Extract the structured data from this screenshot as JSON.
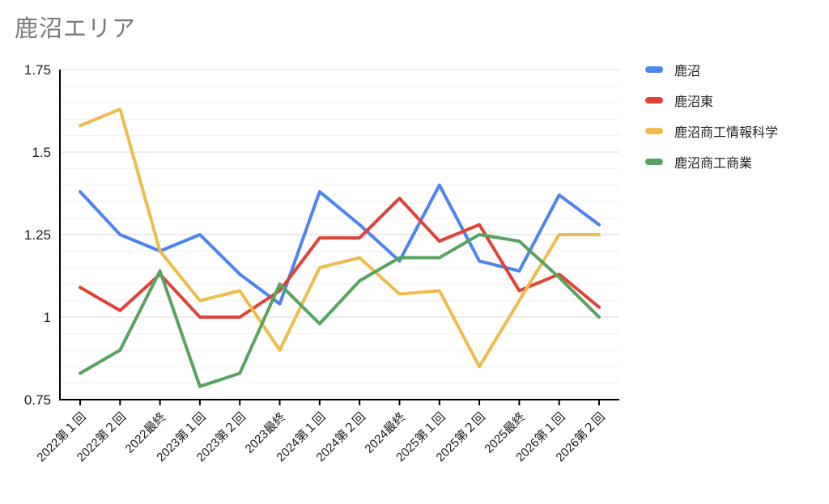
{
  "title": "鹿沼エリア",
  "colors": {
    "title_text": "#7a7a7a",
    "axis": "#000000",
    "grid_major": "#d9d9d9",
    "grid_minor": "#f0f0f0",
    "tick_label": "#1a1a1a"
  },
  "chart_data": {
    "type": "line",
    "title": "鹿沼エリア",
    "xlabel": "",
    "ylabel": "",
    "grid": true,
    "legend_position": "right",
    "ylim": [
      0.75,
      1.75
    ],
    "y_minor_step": 0.05,
    "y_ticks": [
      {
        "value": 0.75,
        "label": "0.75"
      },
      {
        "value": 1.0,
        "label": "1"
      },
      {
        "value": 1.25,
        "label": "1.25"
      },
      {
        "value": 1.5,
        "label": "1.5"
      },
      {
        "value": 1.75,
        "label": "1.75"
      }
    ],
    "categories": [
      "2022第１回",
      "2022第２回",
      "2022最終",
      "2023第１回",
      "2023第２回",
      "2023最終",
      "2024第１回",
      "2024第２回",
      "2024最終",
      "2025第１回",
      "2025第２回",
      "2025最終",
      "2026第１回",
      "2026第２回"
    ],
    "series": [
      {
        "name": "鹿沼",
        "color": "#4c84f2",
        "values": [
          1.38,
          1.25,
          1.2,
          1.25,
          1.13,
          1.04,
          1.38,
          1.28,
          1.17,
          1.4,
          1.17,
          1.14,
          1.37,
          1.28
        ]
      },
      {
        "name": "鹿沼東",
        "color": "#e04237",
        "values": [
          1.09,
          1.02,
          1.13,
          1.0,
          1.0,
          1.08,
          1.24,
          1.24,
          1.36,
          1.23,
          1.28,
          1.08,
          1.13,
          1.03
        ]
      },
      {
        "name": "鹿沼商工情報科学",
        "color": "#eebc4d",
        "values": [
          1.58,
          1.63,
          1.2,
          1.05,
          1.08,
          0.9,
          1.15,
          1.18,
          1.07,
          1.08,
          0.85,
          1.05,
          1.25,
          1.25
        ]
      },
      {
        "name": "鹿沼商工商業",
        "color": "#57a45f",
        "values": [
          0.83,
          0.9,
          1.14,
          0.79,
          0.83,
          1.1,
          0.98,
          1.11,
          1.18,
          1.18,
          1.25,
          1.23,
          1.12,
          1.0
        ]
      }
    ]
  }
}
